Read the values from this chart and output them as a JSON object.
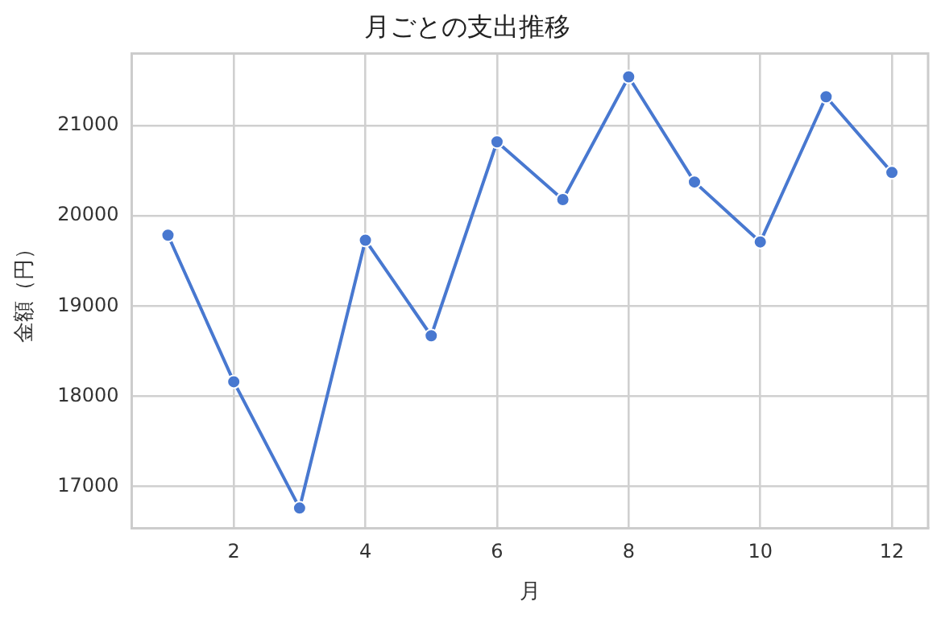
{
  "chart_data": {
    "type": "line",
    "title": "月ごとの支出推移",
    "xlabel": "月",
    "ylabel": "金額（円）",
    "x": [
      1,
      2,
      3,
      4,
      5,
      6,
      7,
      8,
      9,
      10,
      11,
      12
    ],
    "series": [
      {
        "color": "#4878d0",
        "values": [
          19785,
          18160,
          16760,
          19730,
          18670,
          20820,
          20180,
          21540,
          20375,
          19710,
          21320,
          20480
        ]
      }
    ],
    "xlim": [
      0.45,
      12.55
    ],
    "xticks": [
      2,
      4,
      6,
      8,
      10,
      12
    ],
    "ylim": [
      16540,
      21800
    ],
    "yticks": [
      17000,
      18000,
      19000,
      20000,
      21000
    ],
    "grid": true,
    "marker": "circle",
    "legend": false
  }
}
